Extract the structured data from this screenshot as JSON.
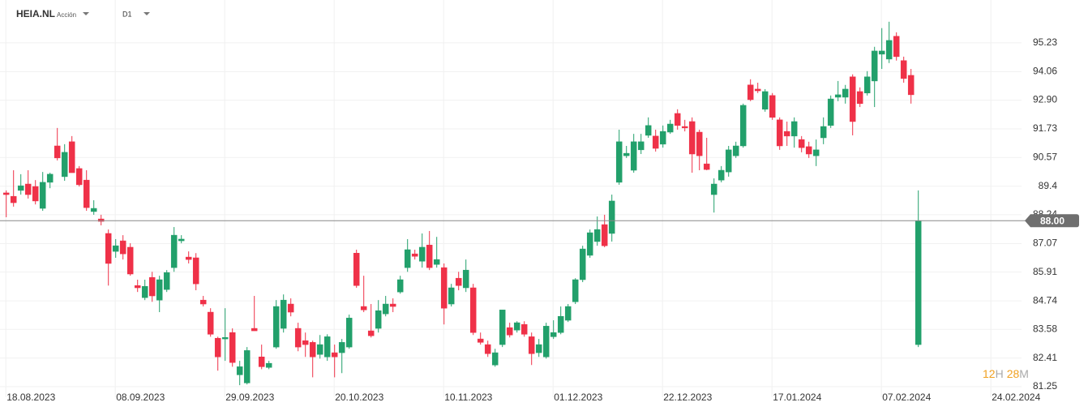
{
  "header": {
    "symbol": "HEIA.NL",
    "kind": "Acción",
    "timeframe": "D1"
  },
  "countdown": {
    "hours": "12",
    "hours_unit": "H",
    "minutes": "28",
    "minutes_unit": "M"
  },
  "chart_data": {
    "type": "candlestick",
    "up_color": "#22a06b",
    "down_color": "#ef3148",
    "open": [
      89.13,
      88.99,
      89.23,
      89.49,
      89.39,
      88.5,
      89.56,
      91.04,
      89.79,
      91.21,
      90.12,
      89.65,
      88.37,
      88.07,
      87.48,
      86.75,
      87.18,
      86.92,
      85.36,
      84.87,
      85.69,
      84.77,
      85.2,
      86.09,
      87.18,
      86.52,
      86.49,
      84.77,
      84.28,
      83.22,
      83.19,
      83.45,
      81.73,
      81.4,
      83.62,
      82.46,
      82.03,
      82.86,
      83.62,
      84.61,
      83.62,
      83.12,
      83.05,
      82.56,
      82.46,
      82.63,
      82.63,
      82.86,
      86.68,
      84.51,
      83.52,
      83.62,
      84.21,
      84.61,
      85.1,
      86.09,
      86.65,
      86.35,
      87.01,
      86.22,
      86.09,
      84.61,
      85.66,
      85.27,
      85.27,
      83.19,
      82.96,
      82.13,
      82.96,
      83.65,
      83.55,
      83.78,
      83.28,
      82.63,
      82.46,
      83.28,
      83.45,
      83.95,
      84.7,
      85.6,
      86.59,
      87.15,
      87.84,
      87.48,
      89.56,
      90.64,
      90.05,
      90.88,
      91.47,
      91.44,
      91.11,
      91.6,
      92.36,
      91.83,
      92.03,
      91.6,
      90.31,
      89.06,
      89.65,
      89.98,
      90.64,
      91.04,
      93.52,
      93.35,
      92.53,
      93.09,
      92.1,
      91.63,
      91.44,
      91.3,
      91.01,
      90.64,
      91.37,
      91.87,
      93.02,
      93.02,
      93.85,
      93.25,
      93.19,
      93.68,
      94.77,
      94.57,
      95.5,
      94.51,
      93.91,
      82.96
    ],
    "high": [
      89.23,
      90.05,
      89.89,
      90.05,
      89.65,
      89.98,
      89.95,
      91.77,
      91.11,
      91.44,
      90.22,
      90.05,
      88.83,
      88.24,
      87.64,
      87.25,
      87.41,
      87.08,
      85.6,
      85.6,
      85.92,
      85.76,
      85.99,
      87.74,
      87.41,
      86.75,
      86.68,
      84.94,
      84.44,
      83.28,
      84.44,
      83.62,
      82.3,
      82.86,
      84.94,
      82.96,
      82.3,
      84.77,
      85.0,
      84.84,
      83.85,
      83.45,
      83.12,
      83.35,
      83.38,
      82.96,
      83.19,
      84.18,
      86.82,
      85.76,
      84.61,
      84.77,
      84.94,
      84.84,
      85.76,
      87.25,
      86.82,
      87.48,
      87.58,
      87.34,
      86.26,
      85.43,
      85.92,
      86.42,
      85.43,
      83.45,
      83.12,
      82.79,
      84.37,
      83.85,
      83.91,
      83.91,
      83.45,
      83.19,
      83.85,
      83.95,
      84.51,
      84.61,
      85.66,
      86.98,
      87.64,
      88.17,
      88.24,
      89.06,
      91.7,
      91.04,
      91.53,
      91.53,
      92.2,
      91.7,
      91.87,
      92.1,
      92.53,
      92.1,
      92.2,
      91.7,
      91.37,
      89.72,
      90.22,
      91.04,
      91.21,
      92.76,
      93.75,
      93.61,
      93.35,
      93.19,
      92.2,
      92.03,
      92.2,
      91.44,
      91.21,
      91.3,
      92.2,
      93.09,
      93.68,
      93.52,
      93.95,
      93.42,
      94.08,
      95.07,
      95.83,
      96.09,
      95.66,
      94.67,
      94.17,
      89.23
    ],
    "low": [
      88.14,
      88.57,
      89.06,
      88.9,
      88.66,
      88.4,
      89.32,
      90.45,
      89.62,
      89.95,
      89.39,
      88.4,
      88.24,
      87.81,
      85.36,
      86.49,
      86.42,
      85.76,
      85.1,
      84.77,
      84.7,
      84.28,
      85.1,
      85.92,
      87.08,
      86.26,
      85.17,
      84.51,
      83.28,
      81.9,
      82.3,
      82.06,
      81.31,
      81.34,
      83.52,
      81.96,
      81.96,
      82.79,
      83.45,
      84.11,
      82.69,
      82.46,
      81.63,
      82.39,
      82.3,
      81.63,
      81.8,
      82.79,
      85.27,
      84.28,
      83.25,
      83.45,
      84.11,
      84.28,
      85.03,
      85.92,
      86.42,
      86.09,
      85.99,
      86.09,
      83.78,
      84.51,
      85.17,
      85.1,
      83.35,
      82.96,
      82.46,
      82.06,
      82.86,
      83.25,
      83.45,
      83.28,
      82.13,
      82.46,
      82.39,
      83.19,
      83.38,
      83.88,
      84.61,
      85.5,
      86.49,
      86.98,
      86.92,
      87.15,
      89.46,
      90.55,
      89.95,
      90.71,
      91.37,
      90.81,
      90.97,
      91.53,
      91.7,
      91.63,
      89.95,
      90.05,
      90.05,
      88.33,
      89.56,
      89.79,
      90.55,
      90.97,
      92.86,
      93.19,
      92.43,
      92.1,
      90.88,
      91.04,
      90.97,
      90.78,
      90.55,
      90.22,
      91.11,
      91.77,
      92.86,
      92.76,
      91.47,
      92.62,
      93.09,
      92.62,
      94.17,
      94.41,
      94.51,
      93.61,
      92.76,
      82.86
    ],
    "close": [
      89.06,
      88.73,
      89.42,
      89.06,
      88.8,
      89.56,
      89.89,
      90.55,
      90.78,
      89.95,
      89.46,
      88.53,
      88.5,
      87.97,
      86.26,
      86.98,
      86.65,
      85.83,
      85.27,
      85.33,
      84.94,
      85.6,
      85.89,
      87.41,
      87.25,
      86.42,
      85.43,
      84.61,
      83.38,
      82.46,
      83.25,
      82.23,
      82.06,
      82.72,
      83.52,
      82.06,
      82.2,
      84.51,
      84.77,
      84.28,
      82.86,
      82.96,
      82.46,
      82.96,
      83.28,
      82.46,
      83.05,
      84.04,
      85.36,
      84.37,
      83.32,
      84.34,
      84.61,
      84.51,
      85.6,
      86.82,
      86.55,
      86.92,
      86.09,
      86.42,
      84.44,
      85.27,
      85.36,
      85.99,
      83.45,
      83.05,
      82.59,
      82.63,
      84.37,
      83.35,
      83.85,
      83.38,
      82.59,
      82.96,
      83.71,
      83.45,
      84.11,
      84.51,
      85.6,
      86.85,
      87.51,
      87.64,
      86.98,
      88.8,
      91.21,
      90.74,
      91.21,
      91.21,
      91.87,
      90.94,
      91.63,
      91.93,
      91.87,
      91.77,
      90.71,
      90.64,
      90.08,
      89.49,
      90.05,
      90.88,
      91.04,
      92.69,
      92.92,
      93.28,
      93.25,
      92.2,
      91.04,
      91.44,
      92.03,
      90.97,
      90.71,
      90.88,
      91.83,
      92.95,
      93.12,
      93.35,
      92.03,
      92.76,
      93.85,
      94.9,
      94.9,
      95.33,
      94.67,
      93.78,
      93.12,
      88.0
    ],
    "last_price": {
      "value": 88.0,
      "label": "88.00"
    },
    "xlim": [
      -0.8,
      139.2
    ],
    "xticks": [
      {
        "value": 0,
        "label": "18.08.2023"
      },
      {
        "value": 15,
        "label": "08.09.2023"
      },
      {
        "value": 30,
        "label": "29.09.2023"
      },
      {
        "value": 45,
        "label": "20.10.2023"
      },
      {
        "value": 60,
        "label": "10.11.2023"
      },
      {
        "value": 75,
        "label": "01.12.2023"
      },
      {
        "value": 90,
        "label": "22.12.2023"
      },
      {
        "value": 105,
        "label": "17.01.2024"
      },
      {
        "value": 120,
        "label": "07.02.2024"
      },
      {
        "value": 135,
        "label": "24.02.2024"
      }
    ],
    "ylim": [
      80.82,
      96.71
    ],
    "yticks": [
      81.25,
      82.41,
      83.58,
      84.74,
      85.91,
      87.07,
      88.24,
      89.4,
      90.57,
      91.73,
      {
        "value": 92.9,
        "label": "92.90"
      },
      94.06,
      95.23
    ],
    "grid": true
  }
}
